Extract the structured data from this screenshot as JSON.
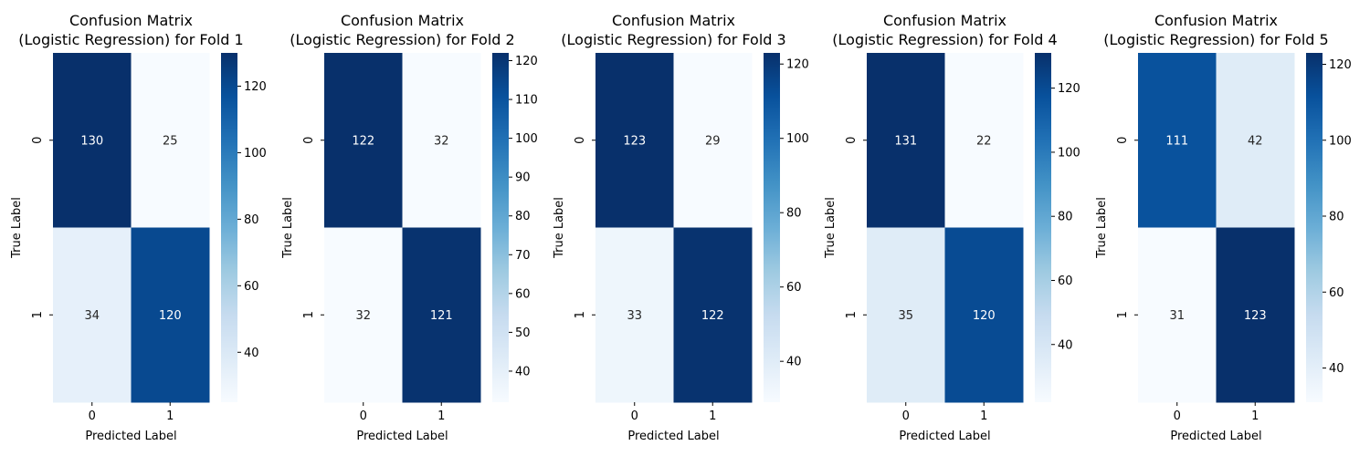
{
  "chart_data": [
    {
      "type": "heatmap",
      "title_line1": "Confusion Matrix",
      "title_line2": "(Logistic Regression) for Fold 1",
      "xlabel": "Predicted Label",
      "ylabel": "True Label",
      "x_categories": [
        "0",
        "1"
      ],
      "y_categories": [
        "0",
        "1"
      ],
      "matrix": [
        [
          130,
          25
        ],
        [
          34,
          120
        ]
      ],
      "colorbar_ticks": [
        "40",
        "60",
        "80",
        "100",
        "120"
      ]
    },
    {
      "type": "heatmap",
      "title_line1": "Confusion Matrix",
      "title_line2": "(Logistic Regression) for Fold 2",
      "xlabel": "Predicted Label",
      "ylabel": "True Label",
      "x_categories": [
        "0",
        "1"
      ],
      "y_categories": [
        "0",
        "1"
      ],
      "matrix": [
        [
          122,
          32
        ],
        [
          32,
          121
        ]
      ],
      "colorbar_ticks": [
        "40",
        "50",
        "60",
        "70",
        "80",
        "90",
        "100",
        "110",
        "120"
      ]
    },
    {
      "type": "heatmap",
      "title_line1": "Confusion Matrix",
      "title_line2": "(Logistic Regression) for Fold 3",
      "xlabel": "Predicted Label",
      "ylabel": "True Label",
      "x_categories": [
        "0",
        "1"
      ],
      "y_categories": [
        "0",
        "1"
      ],
      "matrix": [
        [
          123,
          29
        ],
        [
          33,
          122
        ]
      ],
      "colorbar_ticks": [
        "40",
        "60",
        "80",
        "100",
        "120"
      ]
    },
    {
      "type": "heatmap",
      "title_line1": "Confusion Matrix",
      "title_line2": "(Logistic Regression) for Fold 4",
      "xlabel": "Predicted Label",
      "ylabel": "True Label",
      "x_categories": [
        "0",
        "1"
      ],
      "y_categories": [
        "0",
        "1"
      ],
      "matrix": [
        [
          131,
          22
        ],
        [
          35,
          120
        ]
      ],
      "colorbar_ticks": [
        "40",
        "60",
        "80",
        "100",
        "120"
      ]
    },
    {
      "type": "heatmap",
      "title_line1": "Confusion Matrix",
      "title_line2": "(Logistic Regression) for Fold 5",
      "xlabel": "Predicted Label",
      "ylabel": "True Label",
      "x_categories": [
        "0",
        "1"
      ],
      "y_categories": [
        "0",
        "1"
      ],
      "matrix": [
        [
          111,
          42
        ],
        [
          31,
          123
        ]
      ],
      "colorbar_ticks": [
        "40",
        "60",
        "80",
        "100",
        "120"
      ]
    }
  ],
  "colormap": "Blues"
}
